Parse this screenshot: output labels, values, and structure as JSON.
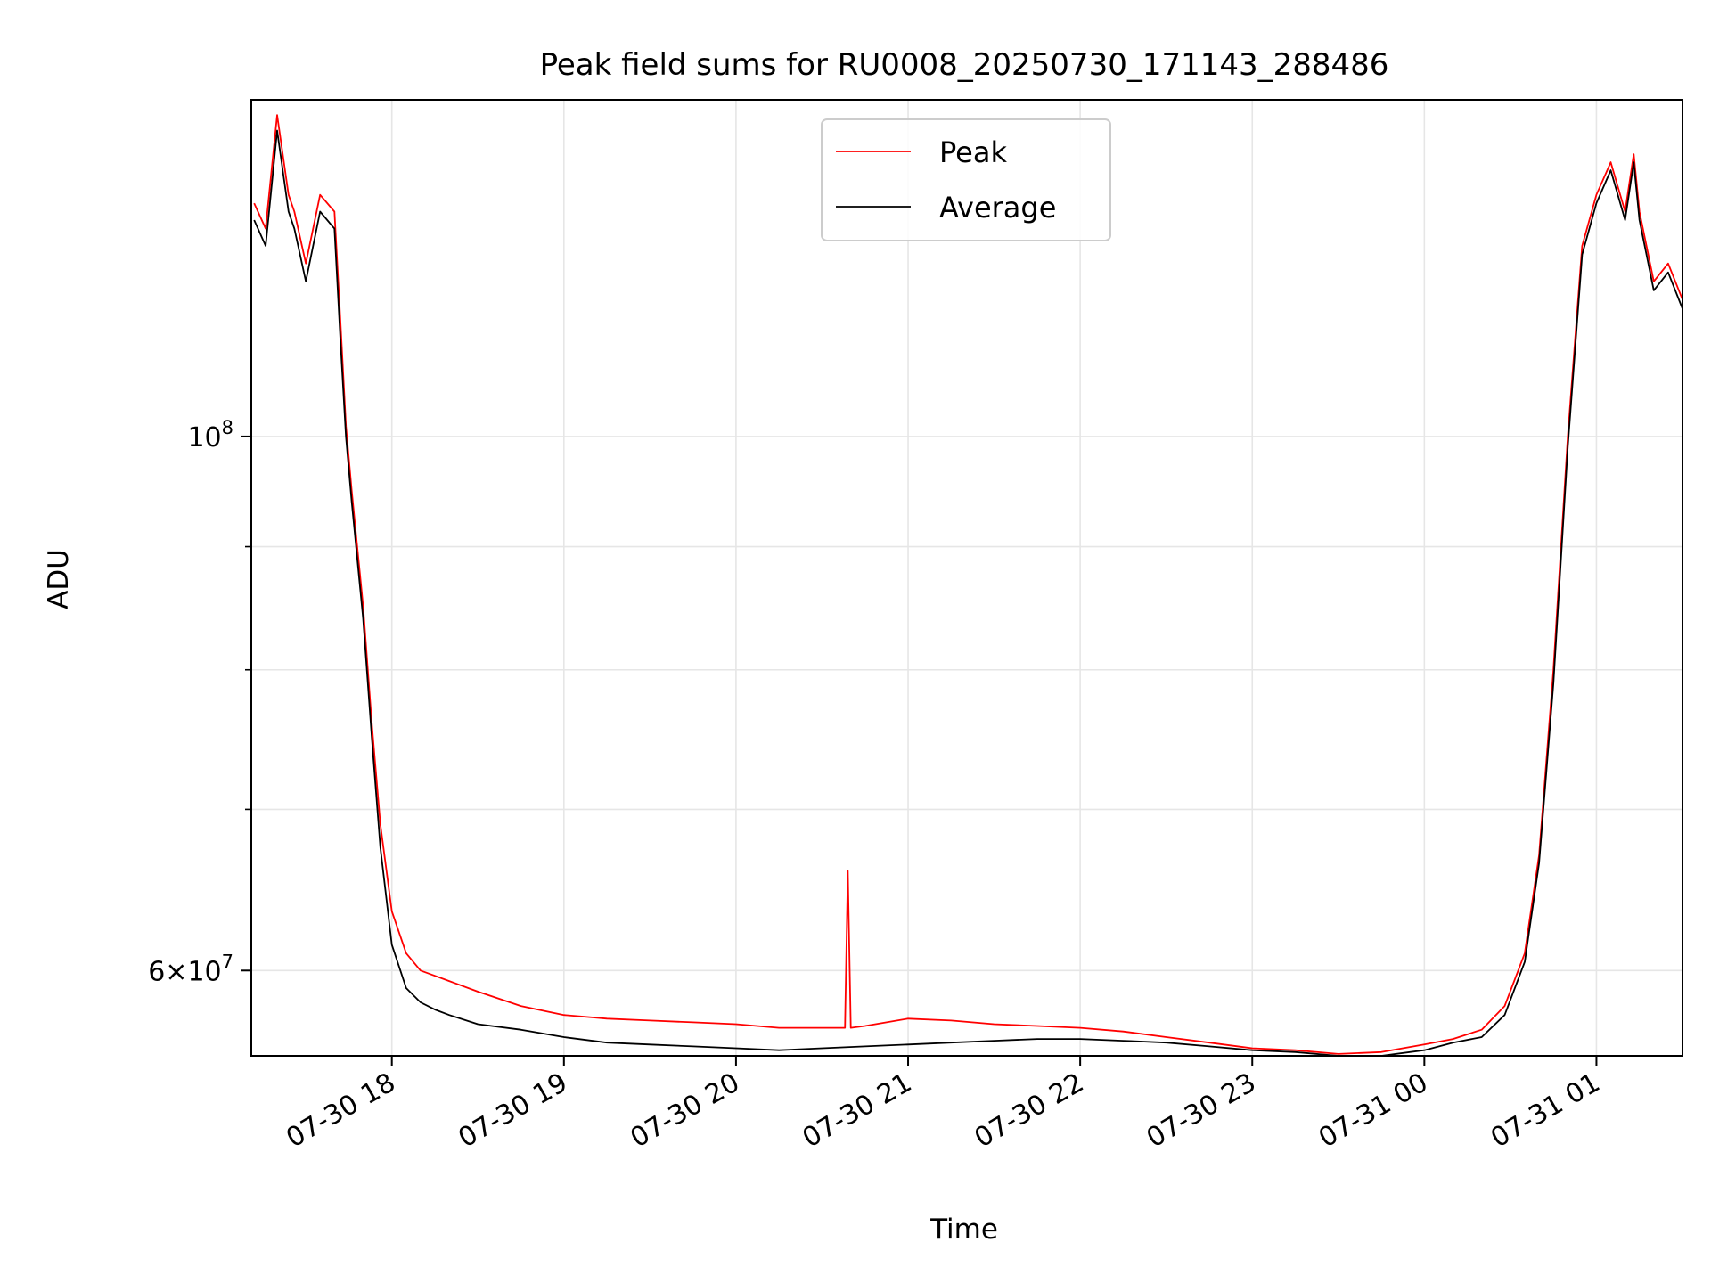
{
  "chart_data": {
    "type": "line",
    "title": "Peak field sums for RU0008_20250730_171143_288486",
    "xlabel": "Time",
    "ylabel": "ADU",
    "y_scale": "log",
    "grid": true,
    "legend_placement": "top-center",
    "x_ticks": [
      "07-30 18",
      "07-30 19",
      "07-30 20",
      "07-30 21",
      "07-30 22",
      "07-30 23",
      "07-31 00",
      "07-31 01"
    ],
    "y_ticks_major": [
      {
        "value": 100000000,
        "label_base": "10",
        "label_exp": "8"
      },
      {
        "value": 60000000,
        "label_mantissa": "6",
        "label_base": "10",
        "label_exp": "7"
      }
    ],
    "xlim": [
      "07-30 17:11",
      "07-31 01:30"
    ],
    "ylim": [
      55300000,
      138000000
    ],
    "colors": {
      "peak": "#ff0000",
      "average": "#000000"
    },
    "series": [
      {
        "name": "Peak",
        "color": "#ff0000",
        "x": [
          "07-30 17:12",
          "07-30 17:16",
          "07-30 17:20",
          "07-30 17:24",
          "07-30 17:26",
          "07-30 17:28",
          "07-30 17:30",
          "07-30 17:35",
          "07-30 17:40",
          "07-30 17:42",
          "07-30 17:44",
          "07-30 17:46",
          "07-30 17:50",
          "07-30 17:53",
          "07-30 17:56",
          "07-30 18:00",
          "07-30 18:05",
          "07-30 18:10",
          "07-30 18:15",
          "07-30 18:20",
          "07-30 18:30",
          "07-30 18:45",
          "07-30 19:00",
          "07-30 19:15",
          "07-30 19:30",
          "07-30 19:45",
          "07-30 20:00",
          "07-30 20:15",
          "07-30 20:30",
          "07-30 20:38",
          "07-30 20:39",
          "07-30 20:40",
          "07-30 20:45",
          "07-30 21:00",
          "07-30 21:15",
          "07-30 21:30",
          "07-30 21:45",
          "07-30 22:00",
          "07-30 22:15",
          "07-30 22:30",
          "07-30 22:45",
          "07-30 23:00",
          "07-30 23:15",
          "07-30 23:30",
          "07-30 23:45",
          "07-31 00:00",
          "07-31 00:10",
          "07-31 00:20",
          "07-31 00:28",
          "07-31 00:35",
          "07-31 00:40",
          "07-31 00:45",
          "07-31 00:50",
          "07-31 00:55",
          "07-31 01:00",
          "07-31 01:05",
          "07-31 01:10",
          "07-31 01:13",
          "07-31 01:15",
          "07-31 01:20",
          "07-31 01:25",
          "07-31 01:30"
        ],
        "y": [
          125000000,
          122000000,
          136000000,
          126000000,
          124000000,
          121000000,
          118000000,
          126000000,
          124000000,
          112000000,
          101000000,
          95000000,
          85000000,
          76000000,
          69000000,
          63500000,
          61000000,
          60000000,
          59700000,
          59400000,
          58800000,
          58000000,
          57500000,
          57300000,
          57200000,
          57100000,
          57000000,
          56800000,
          56800000,
          56800000,
          66000000,
          56800000,
          56900000,
          57300000,
          57200000,
          57000000,
          56900000,
          56800000,
          56600000,
          56300000,
          56000000,
          55700000,
          55600000,
          55400000,
          55500000,
          55900000,
          56200000,
          56700000,
          58000000,
          61000000,
          67000000,
          80000000,
          100000000,
          120000000,
          126000000,
          130000000,
          124000000,
          131000000,
          124000000,
          116000000,
          118000000,
          114000000
        ]
      },
      {
        "name": "Average",
        "color": "#000000",
        "x": [
          "07-30 17:12",
          "07-30 17:16",
          "07-30 17:20",
          "07-30 17:24",
          "07-30 17:26",
          "07-30 17:28",
          "07-30 17:30",
          "07-30 17:35",
          "07-30 17:40",
          "07-30 17:42",
          "07-30 17:44",
          "07-30 17:46",
          "07-30 17:50",
          "07-30 17:53",
          "07-30 17:56",
          "07-30 18:00",
          "07-30 18:05",
          "07-30 18:10",
          "07-30 18:15",
          "07-30 18:20",
          "07-30 18:30",
          "07-30 18:45",
          "07-30 19:00",
          "07-30 19:15",
          "07-30 19:30",
          "07-30 19:45",
          "07-30 20:00",
          "07-30 20:15",
          "07-30 20:30",
          "07-30 20:45",
          "07-30 21:00",
          "07-30 21:15",
          "07-30 21:30",
          "07-30 21:45",
          "07-30 22:00",
          "07-30 22:15",
          "07-30 22:30",
          "07-30 22:45",
          "07-30 23:00",
          "07-30 23:15",
          "07-30 23:30",
          "07-30 23:45",
          "07-31 00:00",
          "07-31 00:10",
          "07-31 00:20",
          "07-31 00:28",
          "07-31 00:35",
          "07-31 00:40",
          "07-31 00:45",
          "07-31 00:50",
          "07-31 00:55",
          "07-31 01:00",
          "07-31 01:05",
          "07-31 01:10",
          "07-31 01:13",
          "07-31 01:15",
          "07-31 01:20",
          "07-31 01:25",
          "07-31 01:30"
        ],
        "y": [
          123000000,
          120000000,
          134000000,
          124000000,
          122000000,
          119000000,
          116000000,
          124000000,
          122000000,
          110000000,
          100000000,
          94000000,
          84000000,
          75000000,
          67500000,
          61500000,
          59000000,
          58200000,
          57800000,
          57500000,
          57000000,
          56700000,
          56300000,
          56000000,
          55900000,
          55800000,
          55700000,
          55600000,
          55700000,
          55800000,
          55900000,
          56000000,
          56100000,
          56200000,
          56200000,
          56100000,
          56000000,
          55800000,
          55600000,
          55500000,
          55300000,
          55300000,
          55600000,
          56000000,
          56300000,
          57500000,
          60500000,
          66500000,
          79000000,
          99000000,
          119000000,
          125000000,
          129000000,
          123000000,
          130000000,
          123000000,
          115000000,
          117000000,
          113000000
        ]
      }
    ]
  }
}
